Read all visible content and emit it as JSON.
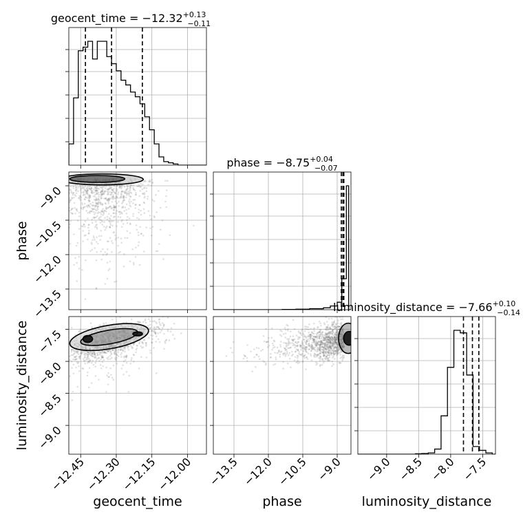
{
  "chart_data": {
    "type": "corner",
    "parameters": [
      "geocent_time",
      "phase",
      "luminosity_distance"
    ],
    "titles": [
      {
        "param": "geocent_time",
        "prefix": "geocent_time = ",
        "median": "−12.32",
        "plus": "+0.13",
        "minus": "−0.11"
      },
      {
        "param": "phase",
        "prefix": "phase = ",
        "median": "−8.75",
        "plus": "+0.04",
        "minus": "−0.07"
      },
      {
        "param": "luminosity_distance",
        "prefix": "luminosity_distance = ",
        "median": "−7.66",
        "plus": "+0.10",
        "minus": "−0.14"
      }
    ],
    "ranges": {
      "geocent_time": [
        -12.5,
        -11.92
      ],
      "phase": [
        -14.4,
        -8.4
      ],
      "luminosity_distance": [
        -9.45,
        -7.3
      ]
    },
    "ticks": {
      "geocent_time": {
        "values": [
          -12.45,
          -12.3,
          -12.15,
          -12.0
        ],
        "labels": [
          "−12.45",
          "−12.30",
          "−12.15",
          "−12.00"
        ]
      },
      "phase": {
        "values": [
          -13.5,
          -12.0,
          -10.5,
          -9.0
        ],
        "labels": [
          "−13.5",
          "−12.0",
          "−10.5",
          "−9.0"
        ]
      },
      "luminosity_distance": {
        "values": [
          -9.0,
          -8.5,
          -8.0,
          -7.5
        ],
        "labels": [
          "−9.0",
          "−8.5",
          "−8.0",
          "−7.5"
        ]
      }
    },
    "histograms": {
      "geocent_time": {
        "edges": [
          -12.5,
          -12.48,
          -12.46,
          -12.44,
          -12.42,
          -12.4,
          -12.38,
          -12.36,
          -12.34,
          -12.32,
          -12.3,
          -12.28,
          -12.26,
          -12.24,
          -12.22,
          -12.2,
          -12.18,
          -12.16,
          -12.14,
          -12.12,
          -12.1,
          -12.08,
          -12.06,
          -12.04,
          -12.02,
          -12.0,
          -11.98,
          -11.96,
          -11.94,
          -11.92
        ],
        "counts": [
          0.18,
          0.57,
          0.97,
          1.0,
          1.05,
          0.9,
          1.05,
          1.05,
          0.92,
          0.86,
          0.8,
          0.72,
          0.68,
          0.62,
          0.58,
          0.52,
          0.41,
          0.3,
          0.18,
          0.07,
          0.03,
          0.02,
          0.01,
          0.0,
          0.0,
          0.0,
          0.0,
          0.0,
          0.0
        ],
        "quantiles": [
          -12.43,
          -12.32,
          -12.19
        ]
      },
      "phase": {
        "edges": [
          -14.4,
          -13.8,
          -13.2,
          -12.6,
          -12.0,
          -11.4,
          -10.8,
          -10.2,
          -9.6,
          -9.3,
          -9.0,
          -8.8,
          -8.6,
          -8.5,
          -8.4
        ],
        "counts": [
          0.0,
          0.0,
          0.0,
          0.0,
          0.0,
          0.002,
          0.004,
          0.008,
          0.015,
          0.03,
          0.06,
          0.25,
          1.0,
          0.0
        ],
        "quantiles": [
          -8.82,
          -8.75,
          -8.71
        ]
      },
      "luminosity_distance": {
        "edges": [
          -9.45,
          -9.35,
          -9.25,
          -9.15,
          -9.05,
          -8.95,
          -8.85,
          -8.75,
          -8.65,
          -8.55,
          -8.45,
          -8.35,
          -8.25,
          -8.15,
          -8.05,
          -7.95,
          -7.85,
          -7.75,
          -7.65,
          -7.55,
          -7.45,
          -7.35,
          -7.3
        ],
        "counts": [
          0.0,
          0.0,
          0.0,
          0.0,
          0.0,
          0.0,
          0.0,
          0.0,
          0.0,
          0.003,
          0.005,
          0.01,
          0.04,
          0.3,
          0.68,
          0.97,
          0.95,
          0.62,
          0.06,
          0.03,
          0.01,
          0.0
        ],
        "quantiles": [
          -7.8,
          -7.66,
          -7.56
        ]
      }
    }
  }
}
